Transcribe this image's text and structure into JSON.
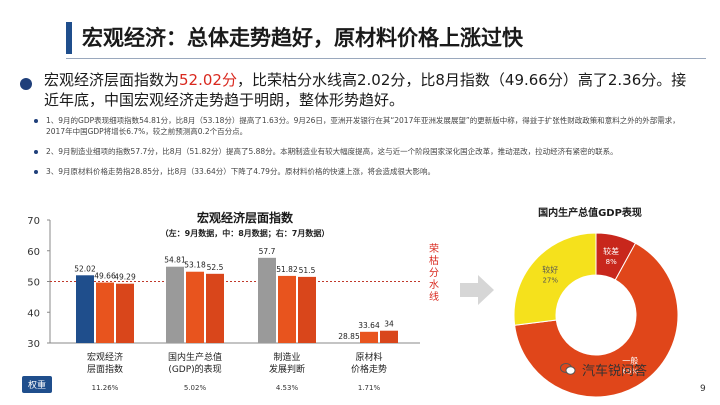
{
  "slide": {
    "title": "宏观经济：总体走势趋好，原材料价格上涨过快",
    "main_bullet_pre": "宏观经济层面指数为",
    "main_bullet_hl": "52.02分",
    "main_bullet_post": "，比荣枯分水线高2.02分，比8月指数（49.66分）高了2.36分。接近年底，中国宏观经济走势趋于明朗，整体形势趋好。",
    "sub_items": [
      "1、9月的GDP表现细项指数54.81分，比8月（53.18分）提高了1.63分。9月26日，亚洲开发银行在其“2017年亚洲发展展望”的更新版中称，得益于扩张性财政政策和意料之外的外部需求，2017年中国GDP将增长6.7%，较之前预测高0.2个百分点。",
      "2、9月制造业细项的指数57.7分，比8月（51.82分）提高了5.88分。本期制造业有较大幅度提高，这与近一个阶段国家深化国企改革，推动混改，拉动经济有紧密的联系。",
      "3、9月原材料价格走势指28.85分，比8月（33.64分）下降了4.79分。原材料价格的快速上涨，将会造成很大影响。"
    ],
    "watermark": "汽车锐问答",
    "page_number": "9"
  },
  "chart_data": [
    {
      "type": "bar",
      "title": "宏观经济层面指数",
      "subtitle": "（左：9月数据，中：8月数据；右：7月数据）",
      "ylim": [
        30,
        70
      ],
      "yticks": [
        30,
        40,
        50,
        60,
        70
      ],
      "threshold": 50,
      "threshold_label": "荣枯分水线",
      "weight_label": "权重",
      "categories": [
        {
          "name": "宏观经济\n层面指数",
          "weight": "11.26%",
          "values": [
            52.02,
            49.66,
            49.29
          ],
          "colors": [
            "#1f4e8c",
            "#e8541e",
            "#d9461b"
          ]
        },
        {
          "name": "国内生产总值\n(GDP)的表现",
          "weight": "5.02%",
          "values": [
            54.81,
            53.18,
            52.5
          ],
          "colors": [
            "#9a9a9a",
            "#e8541e",
            "#d9461b"
          ]
        },
        {
          "name": "制造业\n发展判断",
          "weight": "4.53%",
          "values": [
            57.7,
            51.82,
            51.5
          ],
          "colors": [
            "#9a9a9a",
            "#e8541e",
            "#d9461b"
          ]
        },
        {
          "name": "原材料\n价格走势",
          "weight": "1.71%",
          "values": [
            28.85,
            33.64,
            34
          ],
          "colors": [
            "#9a9a9a",
            "#e8541e",
            "#d9461b"
          ]
        }
      ],
      "value_labels": [
        [
          "52.02",
          "49.66",
          "49.29"
        ],
        [
          "54.81",
          "53.18",
          "52.5"
        ],
        [
          "57.7",
          "51.82",
          "51.5"
        ],
        [
          "28.85",
          "33.64",
          "34"
        ]
      ]
    },
    {
      "type": "pie",
      "title": "国内生产总值GDP表现",
      "slices": [
        {
          "label": "一般",
          "pct": "65%",
          "value": 65,
          "color": "#e0461a"
        },
        {
          "label": "较好",
          "pct": "27%",
          "value": 27,
          "color": "#f5e11c"
        },
        {
          "label": "较差",
          "pct": "8%",
          "value": 8,
          "color": "#c8271c"
        }
      ]
    }
  ]
}
